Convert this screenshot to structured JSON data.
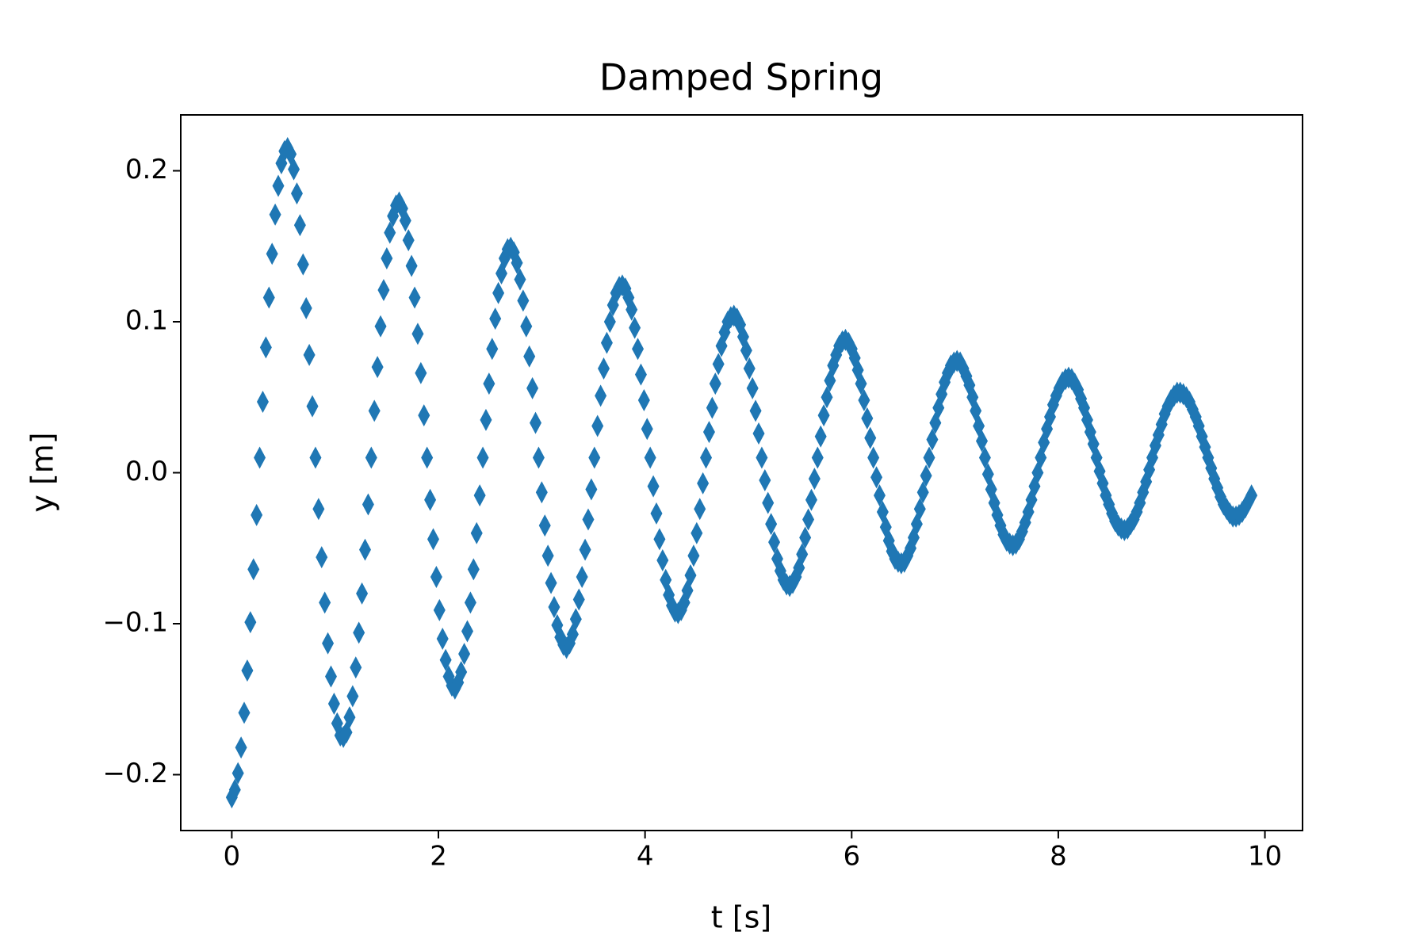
{
  "chart_data": {
    "type": "scatter",
    "title": "Damped Spring",
    "xlabel": "t [s]",
    "ylabel": "y [m]",
    "color": "#1f77b4",
    "grid": false,
    "xlim": [
      -0.494,
      10.364
    ],
    "ylim": [
      -0.237,
      0.237
    ],
    "xticks": [
      0,
      2,
      4,
      6,
      8,
      10
    ],
    "yticks": [
      {
        "value": -0.2,
        "label": "−0.2"
      },
      {
        "value": -0.1,
        "label": "−0.1"
      },
      {
        "value": 0,
        "label": "0.0"
      },
      0.1,
      0.2
    ],
    "x": [
      0,
      0.03,
      0.06,
      0.09,
      0.12,
      0.15,
      0.18,
      0.21,
      0.24,
      0.27,
      0.3,
      0.33,
      0.36,
      0.39,
      0.42,
      0.45,
      0.48,
      0.51,
      0.54,
      0.57,
      0.6,
      0.63,
      0.66,
      0.69,
      0.72,
      0.75,
      0.78,
      0.81,
      0.84,
      0.87,
      0.9,
      0.93,
      0.96,
      0.99,
      1.02,
      1.05,
      1.08,
      1.11,
      1.14,
      1.17,
      1.2,
      1.23,
      1.26,
      1.29,
      1.32,
      1.35,
      1.38,
      1.41,
      1.44,
      1.47,
      1.5,
      1.53,
      1.56,
      1.59,
      1.62,
      1.65,
      1.68,
      1.71,
      1.74,
      1.77,
      1.8,
      1.83,
      1.86,
      1.89,
      1.92,
      1.95,
      1.98,
      2.01,
      2.04,
      2.07,
      2.1,
      2.13,
      2.16,
      2.19,
      2.22,
      2.25,
      2.28,
      2.31,
      2.34,
      2.37,
      2.4,
      2.43,
      2.46,
      2.49,
      2.52,
      2.55,
      2.58,
      2.61,
      2.64,
      2.67,
      2.7,
      2.73,
      2.76,
      2.79,
      2.82,
      2.85,
      2.88,
      2.91,
      2.94,
      2.97,
      3,
      3.03,
      3.06,
      3.09,
      3.12,
      3.15,
      3.18,
      3.21,
      3.24,
      3.27,
      3.3,
      3.33,
      3.36,
      3.39,
      3.42,
      3.45,
      3.48,
      3.51,
      3.54,
      3.57,
      3.6,
      3.63,
      3.66,
      3.69,
      3.72,
      3.75,
      3.78,
      3.81,
      3.84,
      3.87,
      3.9,
      3.93,
      3.96,
      3.99,
      4.02,
      4.05,
      4.08,
      4.11,
      4.14,
      4.17,
      4.2,
      4.23,
      4.26,
      4.29,
      4.32,
      4.35,
      4.38,
      4.41,
      4.44,
      4.47,
      4.5,
      4.53,
      4.56,
      4.59,
      4.62,
      4.65,
      4.68,
      4.71,
      4.74,
      4.77,
      4.8,
      4.83,
      4.86,
      4.89,
      4.92,
      4.95,
      4.98,
      5.01,
      5.04,
      5.07,
      5.1,
      5.13,
      5.16,
      5.19,
      5.22,
      5.25,
      5.28,
      5.31,
      5.34,
      5.37,
      5.4,
      5.43,
      5.46,
      5.49,
      5.52,
      5.55,
      5.58,
      5.61,
      5.64,
      5.67,
      5.7,
      5.73,
      5.76,
      5.79,
      5.82,
      5.85,
      5.88,
      5.91,
      5.94,
      5.97,
      6,
      6.03,
      6.06,
      6.09,
      6.12,
      6.15,
      6.18,
      6.21,
      6.24,
      6.27,
      6.3,
      6.33,
      6.36,
      6.39,
      6.42,
      6.45,
      6.48,
      6.51,
      6.54,
      6.57,
      6.6,
      6.63,
      6.66,
      6.69,
      6.72,
      6.75,
      6.78,
      6.81,
      6.84,
      6.87,
      6.9,
      6.93,
      6.96,
      6.99,
      7.02,
      7.05,
      7.08,
      7.11,
      7.14,
      7.17,
      7.2,
      7.23,
      7.26,
      7.29,
      7.32,
      7.35,
      7.38,
      7.41,
      7.44,
      7.47,
      7.5,
      7.53,
      7.56,
      7.59,
      7.62,
      7.65,
      7.68,
      7.71,
      7.74,
      7.77,
      7.8,
      7.83,
      7.86,
      7.89,
      7.92,
      7.95,
      7.98,
      8.01,
      8.04,
      8.07,
      8.1,
      8.13,
      8.16,
      8.19,
      8.22,
      8.25,
      8.28,
      8.31,
      8.34,
      8.37,
      8.4,
      8.43,
      8.46,
      8.49,
      8.52,
      8.55,
      8.58,
      8.61,
      8.64,
      8.67,
      8.7,
      8.73,
      8.76,
      8.79,
      8.82,
      8.85,
      8.88,
      8.91,
      8.94,
      8.97,
      9,
      9.03,
      9.06,
      9.09,
      9.12,
      9.15,
      9.18,
      9.21,
      9.24,
      9.27,
      9.3,
      9.33,
      9.36,
      9.39,
      9.42,
      9.45,
      9.48,
      9.51,
      9.54,
      9.57,
      9.6,
      9.63,
      9.66,
      9.69,
      9.72,
      9.75,
      9.78,
      9.81,
      9.84,
      9.87
    ],
    "y": [
      -0.215,
      -0.21,
      -0.199,
      -0.182,
      -0.159,
      -0.131,
      -0.099,
      -0.064,
      -0.028,
      0.01,
      0.047,
      0.083,
      0.116,
      0.145,
      0.171,
      0.19,
      0.205,
      0.213,
      0.215,
      0.211,
      0.201,
      0.185,
      0.164,
      0.138,
      0.109,
      0.078,
      0.044,
      0.01,
      -0.024,
      -0.056,
      -0.086,
      -0.113,
      -0.135,
      -0.153,
      -0.166,
      -0.174,
      -0.175,
      -0.172,
      -0.162,
      -0.148,
      -0.129,
      -0.106,
      -0.08,
      -0.051,
      -0.021,
      0.01,
      0.041,
      0.07,
      0.097,
      0.121,
      0.142,
      0.159,
      0.17,
      0.177,
      0.179,
      0.175,
      0.167,
      0.154,
      0.137,
      0.116,
      0.092,
      0.066,
      0.038,
      0.01,
      -0.018,
      -0.044,
      -0.069,
      -0.091,
      -0.11,
      -0.124,
      -0.135,
      -0.141,
      -0.143,
      -0.139,
      -0.132,
      -0.12,
      -0.105,
      -0.086,
      -0.064,
      -0.04,
      -0.015,
      0.01,
      0.035,
      0.059,
      0.082,
      0.102,
      0.119,
      0.132,
      0.142,
      0.148,
      0.149,
      0.146,
      0.139,
      0.128,
      0.114,
      0.097,
      0.077,
      0.056,
      0.033,
      0.01,
      -0.013,
      -0.035,
      -0.055,
      -0.073,
      -0.089,
      -0.101,
      -0.109,
      -0.114,
      -0.116,
      -0.113,
      -0.107,
      -0.097,
      -0.084,
      -0.069,
      -0.051,
      -0.031,
      -0.011,
      0.01,
      0.031,
      0.051,
      0.069,
      0.086,
      0.1,
      0.111,
      0.119,
      0.123,
      0.124,
      0.122,
      0.116,
      0.108,
      0.096,
      0.082,
      0.065,
      0.048,
      0.029,
      0.01,
      -0.009,
      -0.027,
      -0.044,
      -0.058,
      -0.071,
      -0.081,
      -0.088,
      -0.092,
      -0.093,
      -0.091,
      -0.086,
      -0.078,
      -0.068,
      -0.055,
      -0.04,
      -0.024,
      -0.007,
      0.01,
      0.027,
      0.043,
      0.059,
      0.072,
      0.084,
      0.093,
      0.1,
      0.103,
      0.104,
      0.102,
      0.098,
      0.09,
      0.081,
      0.069,
      0.056,
      0.041,
      0.026,
      0.01,
      -0.005,
      -0.02,
      -0.034,
      -0.046,
      -0.057,
      -0.065,
      -0.071,
      -0.074,
      -0.075,
      -0.073,
      -0.069,
      -0.063,
      -0.054,
      -0.043,
      -0.031,
      -0.018,
      -0.004,
      0.01,
      0.024,
      0.038,
      0.05,
      0.061,
      0.071,
      0.078,
      0.084,
      0.087,
      0.088,
      0.086,
      0.082,
      0.076,
      0.068,
      0.059,
      0.048,
      0.036,
      0.023,
      0.01,
      -0.003,
      -0.015,
      -0.026,
      -0.036,
      -0.045,
      -0.052,
      -0.057,
      -0.059,
      -0.06,
      -0.059,
      -0.055,
      -0.05,
      -0.043,
      -0.034,
      -0.024,
      -0.013,
      -0.002,
      0.01,
      0.022,
      0.033,
      0.043,
      0.052,
      0.06,
      0.066,
      0.071,
      0.073,
      0.074,
      0.073,
      0.069,
      0.064,
      0.058,
      0.05,
      0.041,
      0.031,
      0.021,
      0.01,
      -0.001,
      -0.011,
      -0.02,
      -0.028,
      -0.035,
      -0.041,
      -0.045,
      -0.047,
      -0.048,
      -0.047,
      -0.044,
      -0.039,
      -0.033,
      -0.026,
      -0.018,
      -0.009,
      0,
      0.01,
      0.02,
      0.029,
      0.037,
      0.045,
      0.051,
      0.056,
      0.06,
      0.062,
      0.063,
      0.062,
      0.059,
      0.055,
      0.049,
      0.043,
      0.035,
      0.027,
      0.019,
      0.01,
      0.001,
      -0.007,
      -0.015,
      -0.021,
      -0.027,
      -0.032,
      -0.035,
      -0.037,
      -0.038,
      -0.037,
      -0.034,
      -0.031,
      -0.026,
      -0.02,
      -0.013,
      -0.006,
      0.002,
      0.01,
      0.018,
      0.025,
      0.032,
      0.039,
      0.044,
      0.048,
      0.051,
      0.053,
      0.053,
      0.052,
      0.05,
      0.047,
      0.042,
      0.037,
      0.031,
      0.024,
      0.017,
      0.01,
      0.003,
      -0.004,
      -0.01,
      -0.016,
      -0.021,
      -0.024,
      -0.027,
      -0.029,
      -0.029,
      -0.028,
      -0.026,
      -0.023,
      -0.019,
      -0.015
    ]
  }
}
